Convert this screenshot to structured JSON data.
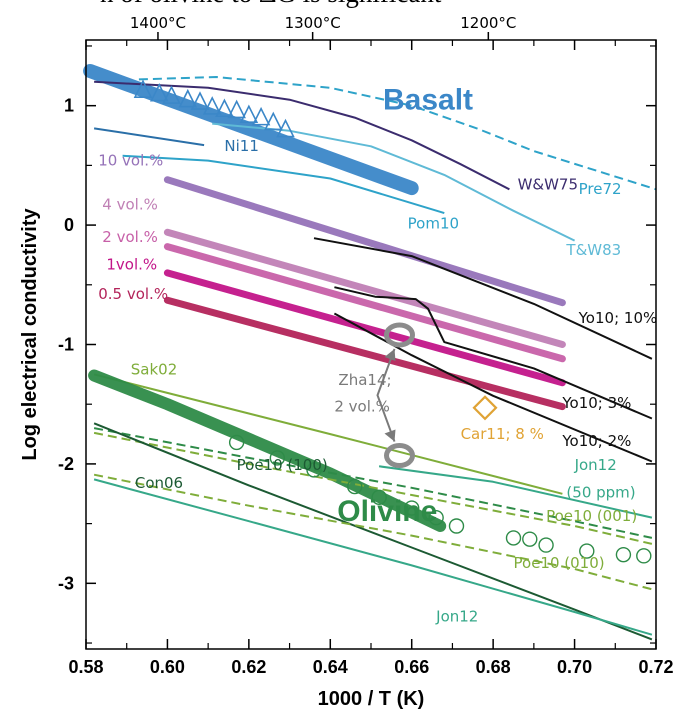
{
  "caption_fragment": "n of olivine to ΔG is significant",
  "chart_data": {
    "type": "line",
    "xlabel": "1000 / T (K)",
    "ylabel": "Log electrical conductivity",
    "xlim": [
      0.58,
      0.72
    ],
    "ylim": [
      -3.55,
      1.55
    ],
    "x_ticks": [
      "0.58",
      "0.60",
      "0.62",
      "0.64",
      "0.66",
      "0.68",
      "0.70",
      "0.72"
    ],
    "x_tick_values": [
      0.58,
      0.6,
      0.62,
      0.64,
      0.66,
      0.68,
      0.7,
      0.72
    ],
    "y_ticks": [
      "1",
      "0",
      "-1",
      "-2",
      "-3"
    ],
    "y_tick_values": [
      1,
      0,
      -1,
      -2,
      -3
    ],
    "top_axis_labels": [
      "1400°C",
      "1300°C",
      "1200°C"
    ],
    "top_axis_celsius": [
      1400,
      1300,
      1200
    ],
    "grid": false,
    "colors": {
      "basalt": "#3b87c8",
      "olivine": "#2e8b48",
      "purple_dark": "#3b2c6e",
      "cyan": "#2ea3c9",
      "lightcyan": "#5fbad6",
      "violet": "#9572b8",
      "pink1": "#c080b5",
      "pink2": "#c760a8",
      "magenta": "#c21589",
      "crimson": "#b3245a",
      "lightgreen": "#7fad3a",
      "teal": "#36a889",
      "darkgreen": "#1c5a33",
      "orange": "#e0a335",
      "gray": "#7a7a7a"
    },
    "group_labels": {
      "basalt": "Basalt",
      "olivine": "Olivine"
    },
    "series": [
      {
        "name": "Basalt",
        "color": "basalt",
        "width": 14,
        "x": [
          0.581,
          0.66
        ],
        "y": [
          1.29,
          0.31
        ]
      },
      {
        "name": "Pre72",
        "color": "cyan",
        "width": 2,
        "dash": true,
        "x": [
          0.593,
          0.612,
          0.64,
          0.66,
          0.676,
          0.69,
          0.72
        ],
        "y": [
          1.22,
          1.24,
          1.15,
          1.0,
          0.81,
          0.62,
          0.3
        ]
      },
      {
        "name": "W&W75",
        "color": "purple_dark",
        "width": 2,
        "x": [
          0.582,
          0.61,
          0.63,
          0.646,
          0.66,
          0.672,
          0.684
        ],
        "y": [
          1.2,
          1.15,
          1.05,
          0.9,
          0.71,
          0.51,
          0.3
        ]
      },
      {
        "name": "T&W83",
        "color": "lightcyan",
        "width": 2,
        "x": [
          0.611,
          0.63,
          0.65,
          0.668,
          0.685,
          0.7
        ],
        "y": [
          0.85,
          0.79,
          0.66,
          0.42,
          0.12,
          -0.13
        ]
      },
      {
        "name": "Ni11",
        "color": "cyan_dark",
        "width": 2,
        "x": [
          0.582,
          0.609
        ],
        "y": [
          0.81,
          0.67
        ]
      },
      {
        "name": "Pom10",
        "color": "cyan",
        "width": 2,
        "x": [
          0.589,
          0.61,
          0.64,
          0.668
        ],
        "y": [
          0.58,
          0.54,
          0.39,
          0.1
        ]
      },
      {
        "name": "10 vol.%",
        "color": "violet",
        "width": 7,
        "x": [
          0.6,
          0.697
        ],
        "y": [
          0.38,
          -0.65
        ]
      },
      {
        "name": "4 vol.%",
        "color": "pink1",
        "width": 7,
        "x": [
          0.6,
          0.697
        ],
        "y": [
          -0.06,
          -1.0
        ]
      },
      {
        "name": "2 vol.%",
        "color": "pink2",
        "width": 7,
        "x": [
          0.6,
          0.697
        ],
        "y": [
          -0.18,
          -1.12
        ]
      },
      {
        "name": "1vol.%",
        "color": "magenta",
        "width": 7,
        "x": [
          0.6,
          0.697
        ],
        "y": [
          -0.4,
          -1.32
        ]
      },
      {
        "name": "0.5 vol.%",
        "color": "crimson",
        "width": 7,
        "x": [
          0.6,
          0.697
        ],
        "y": [
          -0.63,
          -1.52
        ]
      },
      {
        "name": "Yo10; 10%",
        "color": "black",
        "width": 2,
        "x": [
          0.636,
          0.66,
          0.69,
          0.719
        ],
        "y": [
          -0.11,
          -0.26,
          -0.66,
          -1.12
        ]
      },
      {
        "name": "Yo10; 3%",
        "color": "black",
        "width": 2,
        "x": [
          0.641,
          0.651,
          0.661,
          0.664,
          0.668,
          0.69,
          0.719
        ],
        "y": [
          -0.52,
          -0.6,
          -0.62,
          -0.7,
          -0.98,
          -1.2,
          -1.62
        ]
      },
      {
        "name": "Yo10; 2%",
        "color": "black",
        "width": 2,
        "x": [
          0.641,
          0.66,
          0.68,
          0.719
        ],
        "y": [
          -0.74,
          -1.09,
          -1.43,
          -1.98
        ]
      },
      {
        "name": "Sak02",
        "color": "lightgreen",
        "width": 2,
        "x": [
          0.582,
          0.64,
          0.697
        ],
        "y": [
          -1.25,
          -1.75,
          -2.25
        ]
      },
      {
        "name": "Olivine",
        "color": "olivine",
        "width": 12,
        "x": [
          0.582,
          0.6,
          0.62,
          0.64,
          0.667
        ],
        "y": [
          -1.26,
          -1.5,
          -1.79,
          -2.08,
          -2.52
        ]
      },
      {
        "name": "Poe10 (100)",
        "color": "olivine",
        "width": 2,
        "dash": true,
        "x": [
          0.582,
          0.62,
          0.66,
          0.7,
          0.719
        ],
        "y": [
          -1.7,
          -1.95,
          -2.2,
          -2.48,
          -2.62
        ]
      },
      {
        "name": "Poe10 (001)",
        "color": "lightgreen",
        "width": 2,
        "dash": true,
        "x": [
          0.582,
          0.62,
          0.66,
          0.7,
          0.719
        ],
        "y": [
          -1.74,
          -2.0,
          -2.26,
          -2.52,
          -2.67
        ]
      },
      {
        "name": "Con06",
        "color": "darkgreen",
        "width": 2,
        "x": [
          0.582,
          0.62,
          0.66,
          0.7,
          0.719
        ],
        "y": [
          -1.66,
          -2.18,
          -2.7,
          -3.22,
          -3.47
        ]
      },
      {
        "name": "Poe10 (010)",
        "color": "lightgreen",
        "width": 2,
        "dash": true,
        "x": [
          0.582,
          0.62,
          0.66,
          0.7,
          0.719
        ],
        "y": [
          -2.09,
          -2.35,
          -2.6,
          -2.88,
          -3.05
        ]
      },
      {
        "name": "Jon12",
        "color": "teal",
        "width": 2,
        "x": [
          0.582,
          0.62,
          0.66,
          0.7,
          0.719
        ],
        "y": [
          -2.13,
          -2.48,
          -2.85,
          -3.24,
          -3.43
        ]
      },
      {
        "name": "Jon12 (50 ppm)",
        "color": "teal",
        "width": 2,
        "x": [
          0.652,
          0.68,
          0.719
        ],
        "y": [
          -2.02,
          -2.15,
          -2.45
        ]
      }
    ],
    "basalt_triangles": {
      "x": [
        0.594,
        0.598,
        0.601,
        0.605,
        0.608,
        0.611,
        0.614,
        0.617,
        0.62,
        0.623,
        0.626,
        0.629
      ],
      "y": [
        1.13,
        1.1,
        1.08,
        1.05,
        1.03,
        0.99,
        0.97,
        0.96,
        0.92,
        0.9,
        0.86,
        0.8
      ]
    },
    "olivine_circles": {
      "x": [
        0.617,
        0.627,
        0.636,
        0.646,
        0.652,
        0.66,
        0.666,
        0.671,
        0.685,
        0.689,
        0.693,
        0.703,
        0.712,
        0.717
      ],
      "y": [
        -1.82,
        -1.95,
        -2.05,
        -2.19,
        -2.28,
        -2.37,
        -2.45,
        -2.52,
        -2.62,
        -2.63,
        -2.68,
        -2.73,
        -2.76,
        -2.77
      ]
    },
    "diamond": {
      "name": "Car11; 8 %",
      "x": 0.678,
      "y": -1.53
    },
    "ring_markers": {
      "name": "Zha14;",
      "name2": "2 vol.%",
      "x": [
        0.657,
        0.657
      ],
      "y": [
        -0.92,
        -1.93
      ]
    },
    "labels": [
      {
        "text": "Basalt",
        "x": 0.664,
        "y": 0.97,
        "color": "basalt",
        "key": "basalt"
      },
      {
        "text": "Olivine",
        "x": 0.654,
        "y": -2.48,
        "color": "olivine",
        "key": "olivine"
      },
      {
        "text": "Ni11",
        "x": 0.614,
        "y": 0.62,
        "color": "cyan_dark"
      },
      {
        "text": "W&W75",
        "x": 0.686,
        "y": 0.3,
        "color": "purple_dark"
      },
      {
        "text": "Pre72",
        "x": 0.701,
        "y": 0.26,
        "color": "cyan"
      },
      {
        "text": "Pom10",
        "x": 0.659,
        "y": -0.03,
        "color": "cyan"
      },
      {
        "text": "T&W83",
        "x": 0.698,
        "y": -0.25,
        "color": "lightcyan"
      },
      {
        "text": "10 vol.%",
        "x": 0.583,
        "y": 0.5,
        "color": "violet"
      },
      {
        "text": "4 vol.%",
        "x": 0.584,
        "y": 0.13,
        "color": "pink1"
      },
      {
        "text": "2 vol.%",
        "x": 0.584,
        "y": -0.14,
        "color": "pink2"
      },
      {
        "text": "1vol.%",
        "x": 0.585,
        "y": -0.37,
        "color": "magenta"
      },
      {
        "text": "0.5 vol.%",
        "x": 0.583,
        "y": -0.62,
        "color": "crimson"
      },
      {
        "text": "Yo10; 10%",
        "x": 0.701,
        "y": -0.82,
        "color": "black"
      },
      {
        "text": "Yo10; 3%",
        "x": 0.697,
        "y": -1.53,
        "color": "black"
      },
      {
        "text": "Yo10; 2%",
        "x": 0.697,
        "y": -1.85,
        "color": "black"
      },
      {
        "text": "Sak02",
        "x": 0.591,
        "y": -1.25,
        "color": "lightgreen"
      },
      {
        "text": "Zha14;",
        "x": 0.642,
        "y": -1.34,
        "color": "gray"
      },
      {
        "text": "2 vol.%",
        "x": 0.641,
        "y": -1.56,
        "color": "gray"
      },
      {
        "text": "Car11; 8 %",
        "x": 0.672,
        "y": -1.79,
        "color": "orange"
      },
      {
        "text": "Poe10 (100)",
        "x": 0.617,
        "y": -2.05,
        "color": "darkgreen"
      },
      {
        "text": "Con06",
        "x": 0.592,
        "y": -2.2,
        "color": "darkgreen"
      },
      {
        "text": "Jon12",
        "x": 0.7,
        "y": -2.05,
        "color": "teal"
      },
      {
        "text": "(50 ppm)",
        "x": 0.698,
        "y": -2.28,
        "color": "teal"
      },
      {
        "text": "Poe10 (001)",
        "x": 0.693,
        "y": -2.48,
        "color": "lightgreen"
      },
      {
        "text": "Poe10 (010)",
        "x": 0.685,
        "y": -2.87,
        "color": "lightgreen"
      },
      {
        "text": "Jon12",
        "x": 0.666,
        "y": -3.32,
        "color": "teal"
      }
    ]
  }
}
